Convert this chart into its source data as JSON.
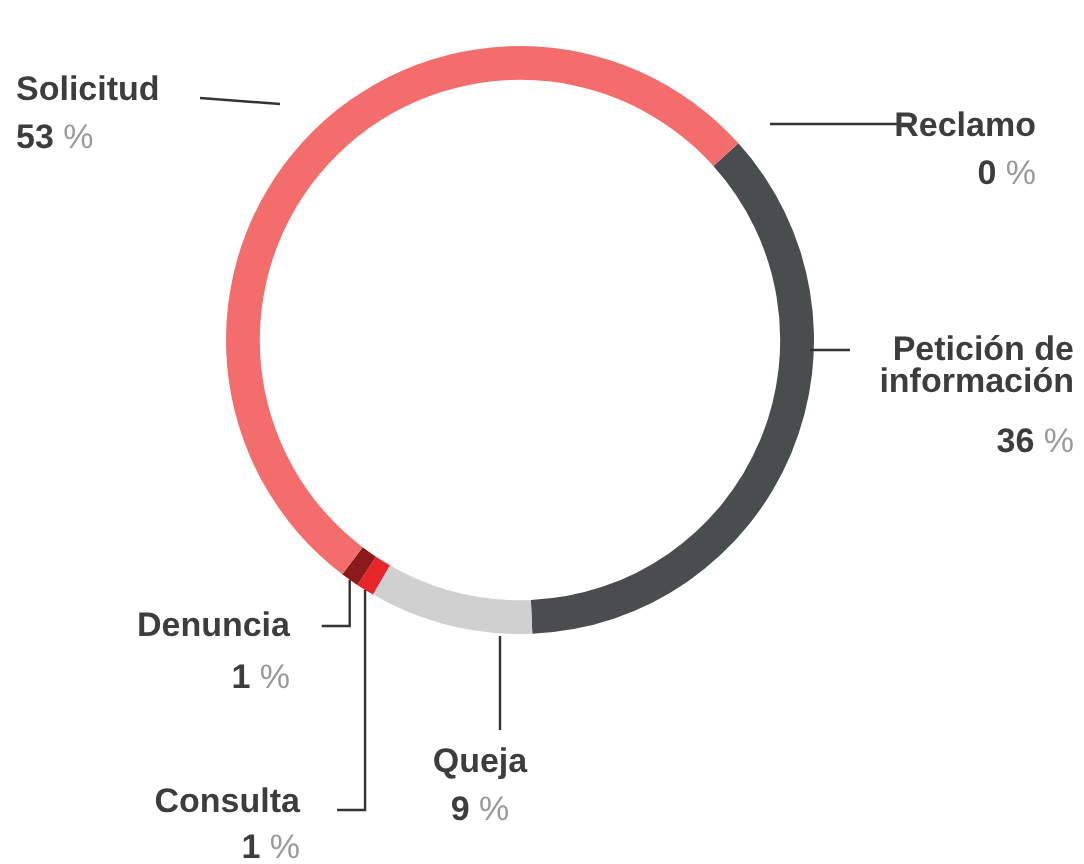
{
  "chart_data": {
    "type": "donut",
    "categories": [
      "Reclamo",
      "Petición de información",
      "Queja",
      "Consulta",
      "Denuncia",
      "Solicitud"
    ],
    "values": [
      0,
      36,
      9,
      1,
      1,
      53
    ],
    "colors": [
      "#3a3a3a",
      "#4a4d4e",
      "#d0d0d0",
      "#e8262a",
      "#8b1a1a",
      "#f26d6b"
    ],
    "value_labels": [
      "0 %",
      "36 %",
      "9 %",
      "1 %",
      "1 %",
      "53 %"
    ],
    "legend": false
  }
}
